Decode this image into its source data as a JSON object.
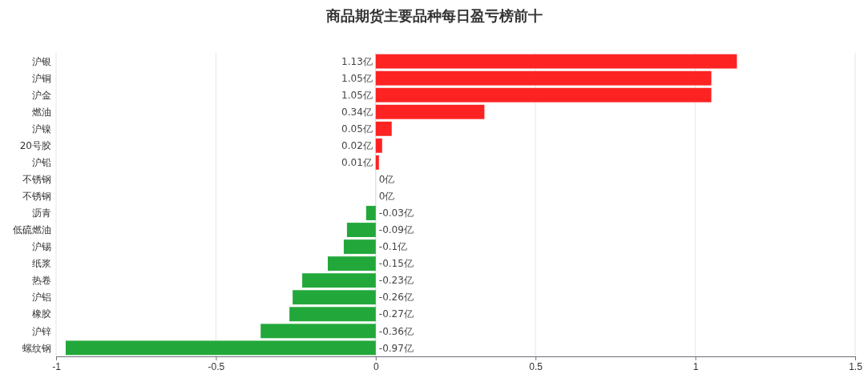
{
  "chart_data": {
    "type": "bar",
    "orientation": "horizontal",
    "title": "商品期货主要品种每日盈亏榜前十",
    "categories": [
      "沪银",
      "沪铜",
      "沪金",
      "燃油",
      "沪镍",
      "20号胶",
      "沪铅",
      "不锈钢",
      "不锈钢",
      "沥青",
      "低硫燃油",
      "沪锡",
      "纸浆",
      "热卷",
      "沪铝",
      "橡胶",
      "沪锌",
      "螺纹钢"
    ],
    "values": [
      1.13,
      1.05,
      1.05,
      0.34,
      0.05,
      0.02,
      0.01,
      0,
      0,
      -0.03,
      -0.09,
      -0.1,
      -0.15,
      -0.23,
      -0.26,
      -0.27,
      -0.36,
      -0.97
    ],
    "value_labels": [
      "1.13亿",
      "1.05亿",
      "1.05亿",
      "0.34亿",
      "0.05亿",
      "0.02亿",
      "0.01亿",
      "0亿",
      "0亿",
      "-0.03亿",
      "-0.09亿",
      "-0.1亿",
      "-0.15亿",
      "-0.23亿",
      "-0.26亿",
      "-0.27亿",
      "-0.36亿",
      "-0.97亿"
    ],
    "colors": [
      "#fe2323",
      "#fe2323",
      "#fe2323",
      "#fe2323",
      "#fe2323",
      "#fe2323",
      "#fe2323",
      "#22a83a",
      "#22a83a",
      "#22a83a",
      "#22a83a",
      "#22a83a",
      "#22a83a",
      "#22a83a",
      "#22a83a",
      "#22a83a",
      "#22a83a",
      "#22a83a"
    ],
    "xlim": [
      -1,
      1.5
    ],
    "xticks": [
      -1,
      -0.5,
      0,
      0.5,
      1,
      1.5
    ],
    "grid": "x"
  }
}
